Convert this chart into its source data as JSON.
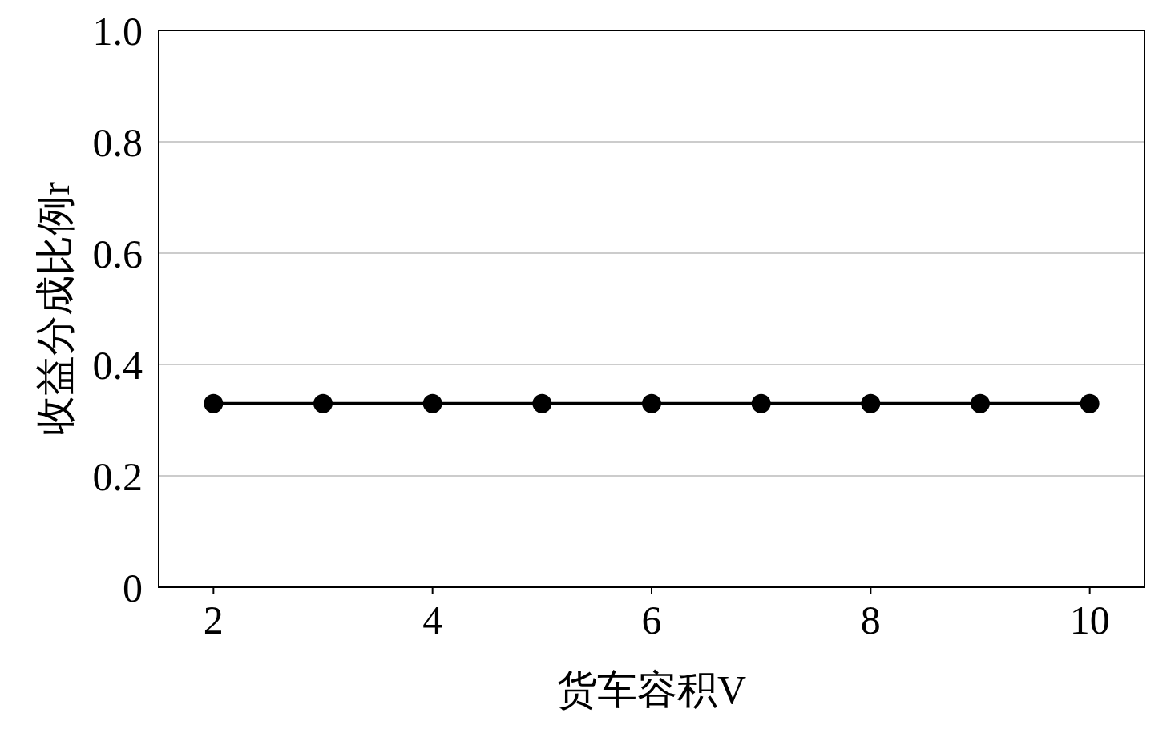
{
  "chart_data": {
    "type": "line",
    "xlabel": "货车容积V",
    "ylabel": "收益分成比例r",
    "x": [
      2,
      3,
      4,
      5,
      6,
      7,
      8,
      9,
      10
    ],
    "series": [
      {
        "color": "#000000",
        "values": [
          0.33,
          0.33,
          0.33,
          0.33,
          0.33,
          0.33,
          0.33,
          0.33,
          0.33
        ]
      }
    ],
    "xlim": [
      1.5,
      10.5
    ],
    "xticks": [
      2,
      4,
      6,
      8,
      10
    ],
    "ylim": [
      0,
      1
    ],
    "yticks": [
      0,
      0.2,
      0.4,
      0.6,
      0.8,
      {
        "value": 1,
        "label": "1.0"
      }
    ],
    "grid": "y",
    "marker": "circle",
    "line_style": "solid",
    "legend": false
  }
}
